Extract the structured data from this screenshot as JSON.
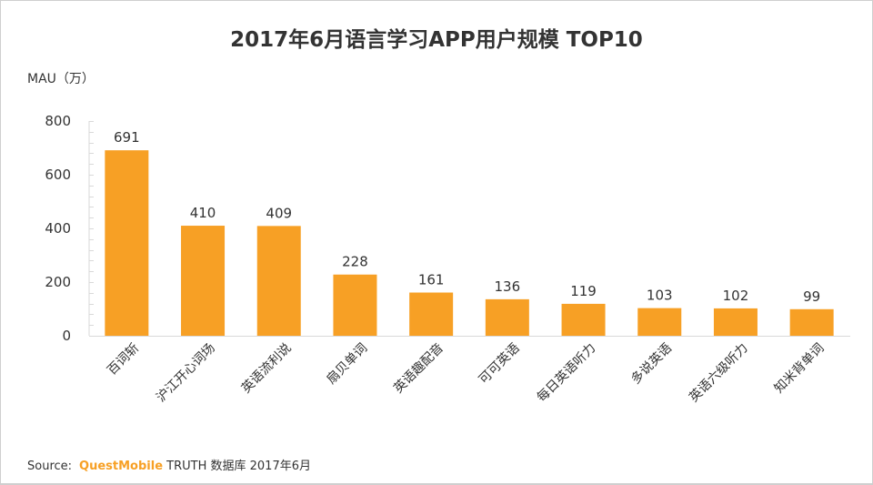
{
  "chart_data": {
    "type": "bar",
    "title": "2017年6月语言学习APP用户规模 TOP10",
    "xlabel": "",
    "ylabel": "MAU（万）",
    "ylim": [
      0,
      800
    ],
    "yticks": [
      0,
      200,
      400,
      600,
      800
    ],
    "grid": false,
    "legend": "none",
    "categories": [
      "百词斩",
      "沪江开心词场",
      "英语流利说",
      "扇贝单词",
      "英语趣配音",
      "可可英语",
      "每日英语听力",
      "多说英语",
      "英语六级听力",
      "知米背单词"
    ],
    "values": [
      691,
      410,
      409,
      228,
      161,
      136,
      119,
      103,
      102,
      99
    ],
    "bar_color": "#f7a025"
  },
  "source": {
    "prefix": "Source:",
    "brand": "QuestMobile",
    "rest": "TRUTH 数据库 2017年6月"
  }
}
